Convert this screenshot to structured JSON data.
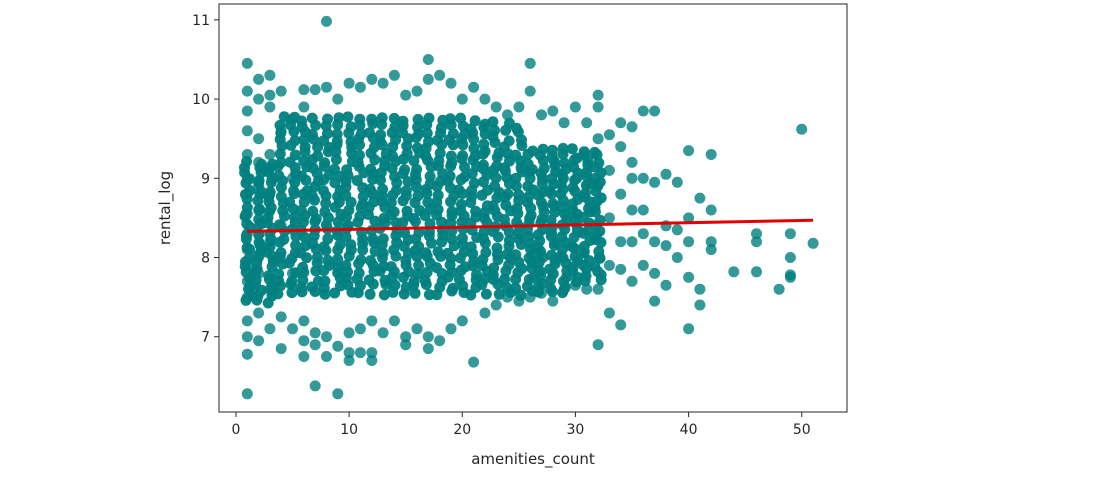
{
  "chart_data": {
    "type": "scatter",
    "title": "",
    "xlabel": "amenities_count",
    "ylabel": "rental_log",
    "xlim": [
      -1.5,
      54
    ],
    "ylim": [
      6.05,
      11.2
    ],
    "xticks": [
      0,
      10,
      20,
      30,
      40,
      50
    ],
    "yticks": [
      7,
      8,
      9,
      10,
      11
    ],
    "grid": false,
    "legend": "none",
    "point_color": "#008080",
    "point_alpha": 0.8,
    "fit_color": "#e00000",
    "series": [
      {
        "kind": "points",
        "points": [
          [
            1,
            6.28
          ],
          [
            1,
            6.78
          ],
          [
            1,
            7.0
          ],
          [
            1,
            7.2
          ],
          [
            1,
            7.5
          ],
          [
            1,
            7.7
          ],
          [
            1,
            7.9
          ],
          [
            1,
            8.1
          ],
          [
            1,
            8.3
          ],
          [
            1,
            8.55
          ],
          [
            1,
            8.8
          ],
          [
            1,
            9.0
          ],
          [
            1,
            9.3
          ],
          [
            1,
            9.6
          ],
          [
            1,
            9.85
          ],
          [
            1,
            10.1
          ],
          [
            1,
            10.45
          ],
          [
            2,
            6.95
          ],
          [
            2,
            7.3
          ],
          [
            2,
            7.55
          ],
          [
            2,
            7.8
          ],
          [
            2,
            8.0
          ],
          [
            2,
            8.3
          ],
          [
            2,
            8.6
          ],
          [
            2,
            8.9
          ],
          [
            2,
            9.2
          ],
          [
            2,
            9.5
          ],
          [
            2,
            10.0
          ],
          [
            2,
            10.25
          ],
          [
            3,
            7.1
          ],
          [
            3,
            7.6
          ],
          [
            3,
            8.2
          ],
          [
            3,
            8.8
          ],
          [
            3,
            9.3
          ],
          [
            3,
            9.9
          ],
          [
            3,
            10.05
          ],
          [
            3,
            10.3
          ],
          [
            4,
            6.85
          ],
          [
            4,
            7.25
          ],
          [
            4,
            8.4
          ],
          [
            4,
            9.6
          ],
          [
            4,
            10.1
          ],
          [
            5,
            7.1
          ],
          [
            5,
            7.8
          ],
          [
            5,
            9.0
          ],
          [
            5,
            9.75
          ],
          [
            6,
            6.75
          ],
          [
            6,
            6.95
          ],
          [
            6,
            7.2
          ],
          [
            6,
            9.9
          ],
          [
            6,
            10.12
          ],
          [
            7,
            6.38
          ],
          [
            7,
            7.05
          ],
          [
            7,
            6.9
          ],
          [
            7,
            10.12
          ],
          [
            8,
            6.75
          ],
          [
            8,
            7.0
          ],
          [
            8,
            10.15
          ],
          [
            8,
            10.98
          ],
          [
            9,
            6.28
          ],
          [
            9,
            6.88
          ],
          [
            9,
            10.0
          ],
          [
            10,
            6.8
          ],
          [
            10,
            6.7
          ],
          [
            10,
            7.05
          ],
          [
            10,
            10.2
          ],
          [
            11,
            6.8
          ],
          [
            11,
            7.1
          ],
          [
            11,
            10.15
          ],
          [
            12,
            6.8
          ],
          [
            12,
            6.7
          ],
          [
            12,
            7.2
          ],
          [
            12,
            10.25
          ],
          [
            13,
            7.05
          ],
          [
            13,
            10.2
          ],
          [
            14,
            7.2
          ],
          [
            14,
            10.3
          ],
          [
            15,
            6.9
          ],
          [
            15,
            7.0
          ],
          [
            15,
            10.05
          ],
          [
            16,
            7.1
          ],
          [
            16,
            10.1
          ],
          [
            17,
            6.85
          ],
          [
            17,
            7.0
          ],
          [
            17,
            10.5
          ],
          [
            17,
            10.25
          ],
          [
            18,
            6.95
          ],
          [
            18,
            10.3
          ],
          [
            19,
            7.1
          ],
          [
            19,
            10.2
          ],
          [
            20,
            7.2
          ],
          [
            20,
            10.0
          ],
          [
            21,
            6.68
          ],
          [
            21,
            10.15
          ],
          [
            22,
            7.3
          ],
          [
            22,
            10.0
          ],
          [
            23,
            7.4
          ],
          [
            23,
            9.9
          ],
          [
            24,
            7.5
          ],
          [
            24,
            9.8
          ],
          [
            25,
            7.45
          ],
          [
            25,
            9.9
          ],
          [
            26,
            7.5
          ],
          [
            26,
            10.45
          ],
          [
            26,
            10.1
          ],
          [
            27,
            7.55
          ],
          [
            27,
            9.8
          ],
          [
            28,
            7.45
          ],
          [
            28,
            9.85
          ],
          [
            29,
            7.6
          ],
          [
            29,
            9.7
          ],
          [
            30,
            7.65
          ],
          [
            30,
            9.9
          ],
          [
            31,
            7.6
          ],
          [
            31,
            9.7
          ],
          [
            32,
            6.9
          ],
          [
            32,
            7.6
          ],
          [
            32,
            9.9
          ],
          [
            32,
            10.05
          ],
          [
            32,
            9.5
          ],
          [
            33,
            7.3
          ],
          [
            33,
            7.9
          ],
          [
            33,
            8.5
          ],
          [
            33,
            9.1
          ],
          [
            33,
            9.55
          ],
          [
            34,
            7.15
          ],
          [
            34,
            7.85
          ],
          [
            34,
            8.2
          ],
          [
            34,
            8.8
          ],
          [
            34,
            9.4
          ],
          [
            34,
            9.7
          ],
          [
            35,
            7.7
          ],
          [
            35,
            8.2
          ],
          [
            35,
            8.6
          ],
          [
            35,
            9.0
          ],
          [
            35,
            9.2
          ],
          [
            35,
            9.65
          ],
          [
            36,
            7.9
          ],
          [
            36,
            8.3
          ],
          [
            36,
            8.6
          ],
          [
            36,
            9.0
          ],
          [
            36,
            9.85
          ],
          [
            37,
            7.45
          ],
          [
            37,
            7.8
          ],
          [
            37,
            8.2
          ],
          [
            37,
            8.95
          ],
          [
            37,
            9.85
          ],
          [
            38,
            7.65
          ],
          [
            38,
            8.15
          ],
          [
            38,
            8.4
          ],
          [
            38,
            9.05
          ],
          [
            39,
            8.0
          ],
          [
            39,
            8.35
          ],
          [
            39,
            8.95
          ],
          [
            40,
            7.1
          ],
          [
            40,
            7.75
          ],
          [
            40,
            8.2
          ],
          [
            40,
            8.5
          ],
          [
            40,
            9.35
          ],
          [
            41,
            7.4
          ],
          [
            41,
            7.6
          ],
          [
            41,
            8.75
          ],
          [
            42,
            8.1
          ],
          [
            42,
            8.6
          ],
          [
            42,
            9.3
          ],
          [
            42,
            8.2
          ],
          [
            44,
            7.82
          ],
          [
            46,
            7.82
          ],
          [
            46,
            8.2
          ],
          [
            46,
            8.3
          ],
          [
            48,
            7.6
          ],
          [
            49,
            7.75
          ],
          [
            49,
            7.78
          ],
          [
            49,
            8.0
          ],
          [
            49,
            8.3
          ],
          [
            50,
            9.62
          ],
          [
            51,
            8.18
          ]
        ]
      },
      {
        "kind": "regression",
        "x": [
          1,
          51
        ],
        "y": [
          8.33,
          8.47
        ]
      }
    ]
  }
}
